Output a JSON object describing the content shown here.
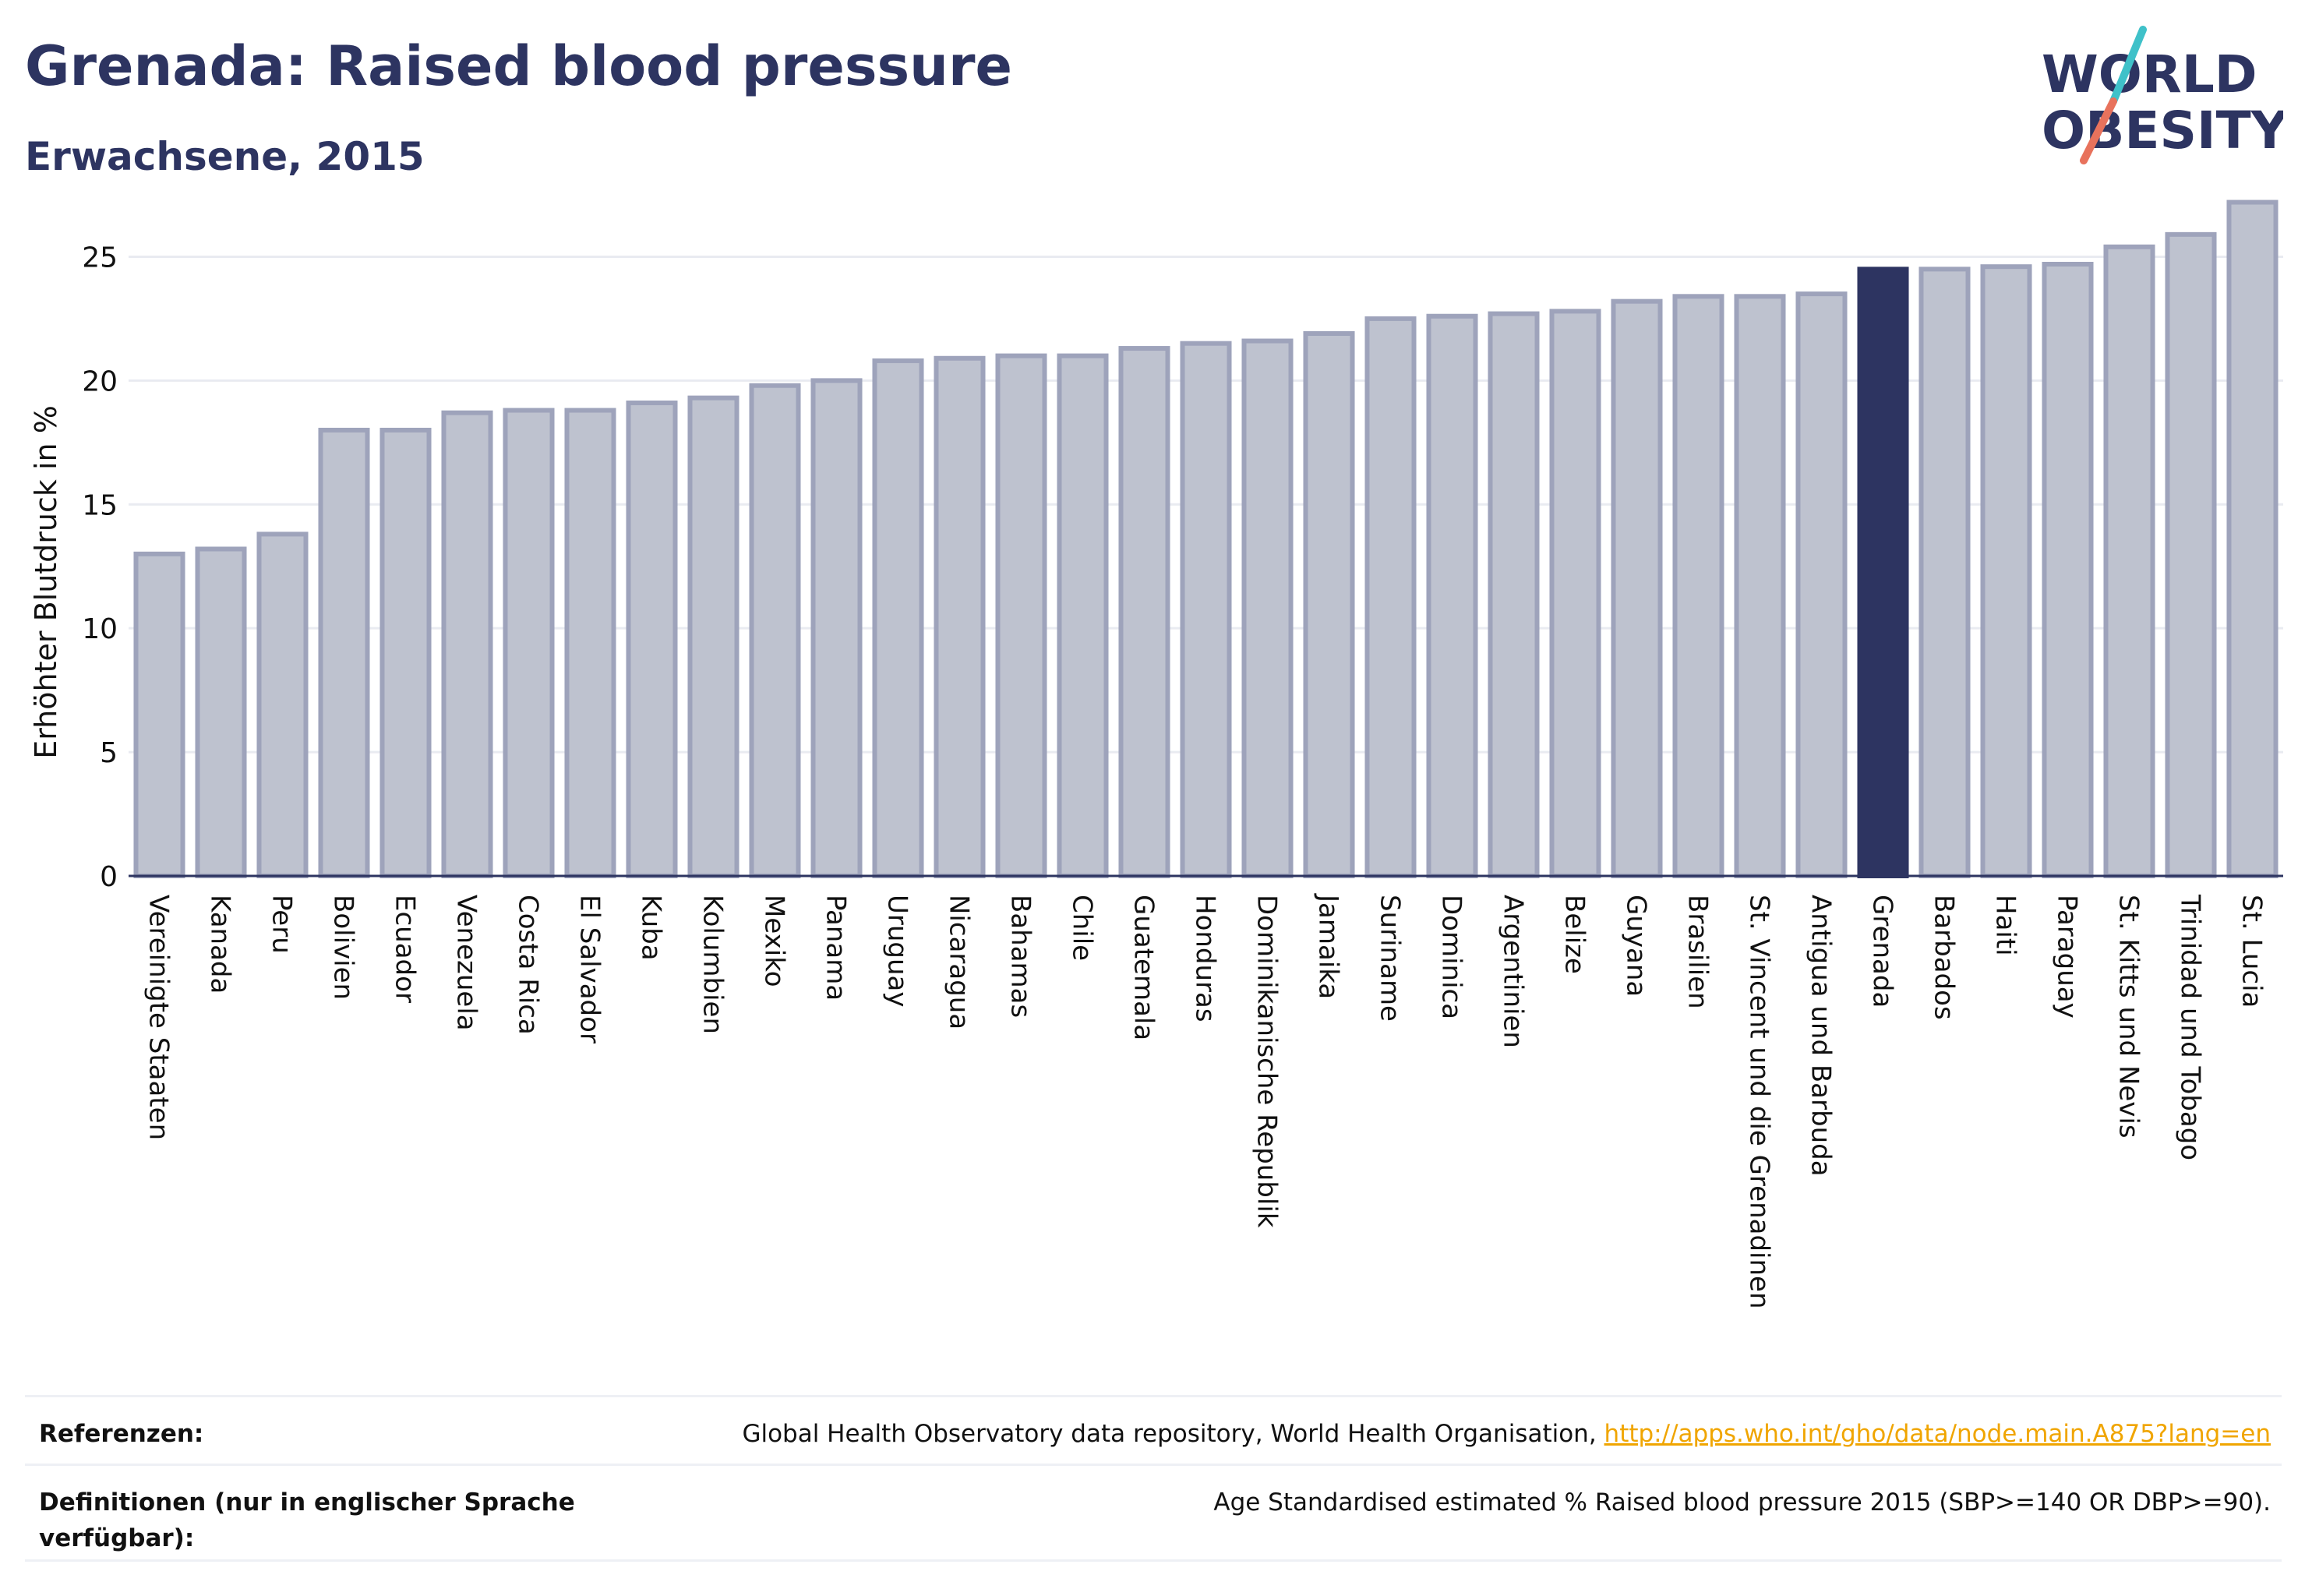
{
  "header": {
    "title": "Grenada: Raised blood pressure",
    "subtitle": "Erwachsene, 2015"
  },
  "logo": {
    "line1": "WORLD",
    "line2": "OBESITY",
    "colors": {
      "text": "#2d3461",
      "slash_teal": "#3fc1c9",
      "slash_coral": "#e8725c"
    }
  },
  "colors": {
    "bar_fill": "#bec2cf",
    "bar_stroke": "#9ea3bb",
    "highlight": "#2d3461",
    "grid": "#e9ebf1",
    "axis_text": "#111111"
  },
  "chart_data": {
    "type": "bar",
    "ylabel": "Erhöhter Blutdruck in %",
    "xlabel": "",
    "ylim": [
      0,
      27.5
    ],
    "yticks": [
      0,
      5,
      10,
      15,
      20,
      25
    ],
    "grid": true,
    "highlight": "Grenada",
    "categories": [
      "Vereinigte Staaten",
      "Kanada",
      "Peru",
      "Bolivien",
      "Ecuador",
      "Venezuela",
      "Costa Rica",
      "El Salvador",
      "Kuba",
      "Kolumbien",
      "Mexiko",
      "Panama",
      "Uruguay",
      "Nicaragua",
      "Bahamas",
      "Chile",
      "Guatemala",
      "Honduras",
      "Dominikanische Republik",
      "Jamaika",
      "Suriname",
      "Dominica",
      "Argentinien",
      "Belize",
      "Guyana",
      "Brasilien",
      "St. Vincent und die Grenadinen",
      "Antigua und Barbuda",
      "Grenada",
      "Barbados",
      "Haiti",
      "Paraguay",
      "St. Kitts und Nevis",
      "Trinidad und Tobago",
      "St. Lucia"
    ],
    "values": [
      13.0,
      13.2,
      13.8,
      18.0,
      18.0,
      18.7,
      18.8,
      18.8,
      19.1,
      19.3,
      19.8,
      20.0,
      20.8,
      20.9,
      21.0,
      21.0,
      21.3,
      21.5,
      21.6,
      21.9,
      22.5,
      22.6,
      22.7,
      22.8,
      23.2,
      23.4,
      23.4,
      23.5,
      24.5,
      24.5,
      24.6,
      24.7,
      25.4,
      25.9,
      27.2
    ]
  },
  "footer": {
    "references_label": "Referenzen:",
    "references_text": "Global Health Observatory data repository, World Health Organisation,",
    "references_link": "http://apps.who.int/gho/data/node.main.A875?lang=en",
    "definitions_label": "Definitionen (nur in englischer Sprache verfügbar):",
    "definitions_text": "Age Standardised estimated % Raised blood pressure 2015 (SBP>=140 OR DBP>=90)."
  }
}
